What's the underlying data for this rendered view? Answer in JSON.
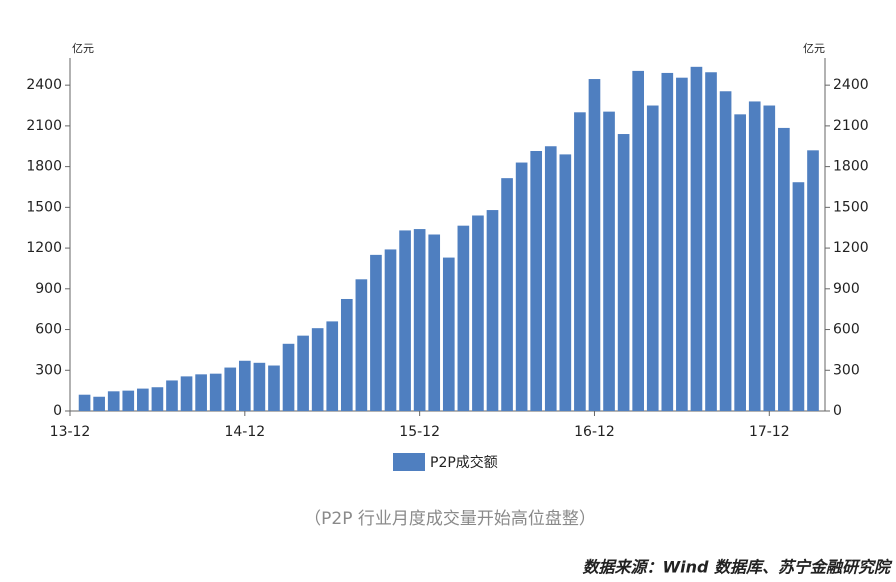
{
  "chart_data": {
    "type": "bar",
    "categories": [
      "13-12",
      null,
      null,
      null,
      null,
      null,
      null,
      null,
      null,
      null,
      null,
      null,
      "14-12",
      null,
      null,
      null,
      null,
      null,
      null,
      null,
      null,
      null,
      null,
      null,
      "15-12",
      null,
      null,
      null,
      null,
      null,
      null,
      null,
      null,
      null,
      null,
      null,
      "16-12",
      null,
      null,
      null,
      null,
      null,
      null,
      null,
      null,
      null,
      null,
      null,
      "17-12",
      null,
      null,
      null
    ],
    "series": [
      {
        "name": "P2P成交额",
        "color": "#4f7fc0",
        "values": [
          null,
          120,
          105,
          145,
          150,
          165,
          175,
          225,
          255,
          270,
          275,
          320,
          370,
          355,
          335,
          495,
          555,
          610,
          660,
          825,
          970,
          1150,
          1190,
          1330,
          1340,
          1300,
          1130,
          1365,
          1440,
          1480,
          1715,
          1830,
          1915,
          1950,
          1890,
          2200,
          2445,
          2205,
          2040,
          2505,
          2250,
          2490,
          2455,
          2535,
          2495,
          2355,
          2185,
          2280,
          2250,
          2085,
          1685,
          1920
        ]
      }
    ],
    "y_unit": "亿元",
    "y2_unit": "亿元",
    "ylim": [
      0,
      2600
    ],
    "yticks": [
      0,
      300,
      600,
      900,
      1200,
      1500,
      1800,
      2100,
      2400
    ],
    "y2lim": [
      0,
      2600
    ],
    "y2ticks": [
      0,
      300,
      600,
      900,
      1200,
      1500,
      1800,
      2100,
      2400
    ],
    "legend": "bottom",
    "caption": "（P2P 行业月度成交量开始高位盘整）",
    "source": "数据来源：Wind 数据库、苏宁金融研究院"
  }
}
